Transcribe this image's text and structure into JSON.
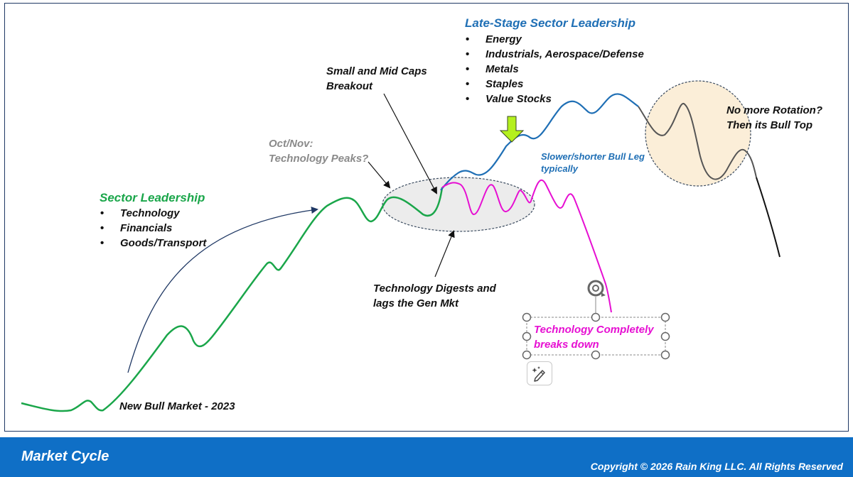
{
  "colors": {
    "green": "#1aa64a",
    "blue": "#1f6fb5",
    "magenta": "#e60fd2",
    "gray_text": "#8a8a8a",
    "footer_bg": "#0f6fc6",
    "circle_fill": "#fbeed8"
  },
  "labels": {
    "new_bull": "New Bull Market - 2023",
    "sector_title": "Sector Leadership",
    "sector_items": [
      "Technology",
      "Financials",
      "Goods/Transport"
    ],
    "oct_nov_line1": "Oct/Nov:",
    "oct_nov_line2": "Technology Peaks?",
    "small_mid_line1": "Small and Mid Caps",
    "small_mid_line2": "Breakout",
    "late_title": "Late-Stage Sector Leadership",
    "late_items": [
      "Energy",
      "Industrials, Aerospace/Defense",
      "Metals",
      "Staples",
      "Value Stocks"
    ],
    "slower_line1": "Slower/shorter Bull Leg",
    "slower_line2": "typically",
    "no_more_line1": "No more Rotation?",
    "no_more_line2": "Then its Bull Top",
    "digest_line1": "Technology Digests and",
    "digest_line2": "lags the Gen Mkt",
    "breakdown_line1": "Technology Completely",
    "breakdown_line2": "breaks down"
  },
  "footer": {
    "title": "Market Cycle",
    "copyright": "Copyright © 2026 Rain King LLC. All Rights Reserved"
  },
  "icons": {
    "rotate": "rotate-handle-icon",
    "edit": "magic-pen-icon",
    "arrow": "down-arrow-icon"
  }
}
